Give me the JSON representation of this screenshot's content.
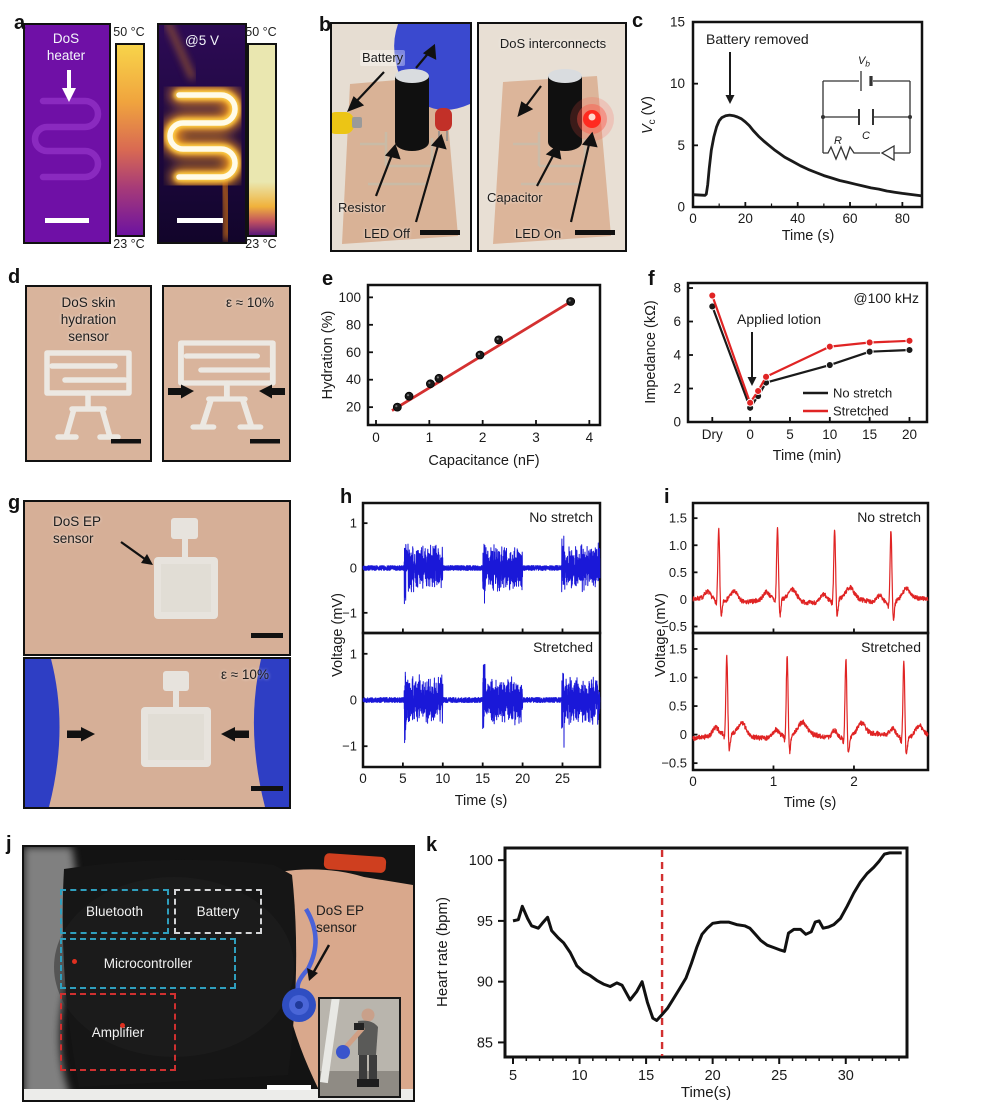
{
  "colors": {
    "emg_trace": "#1a18d8",
    "ecg_trace": "#e02424",
    "fit_line": "#d43030",
    "event_dashed": "#d23030",
    "thermal_purple": "#6f10a6",
    "thermal_hot": "#f8d44a",
    "thermal_cold": "#6d13a0",
    "skin": "#d9b29a",
    "glove_blue": "#3a49cf",
    "led_red": "#ff2a20",
    "box_bluetooth": "#2f9fbe",
    "box_battery": "#d4d5d7",
    "box_amplifier": "#d03030"
  },
  "panels": {
    "a": {
      "label": "a",
      "heater_label": "DoS heater",
      "voltage_annotation": "@5 V",
      "colorbar_max": "50 °C",
      "colorbar_min": "23 °C"
    },
    "b": {
      "label": "b",
      "left": {
        "battery": "Battery",
        "resistor": "Resistor",
        "led": "LED Off"
      },
      "right": {
        "interconnects": "DoS interconnects",
        "capacitor": "Capacitor",
        "led": "LED On"
      }
    },
    "c": {
      "label": "c"
    },
    "d": {
      "label": "d",
      "sensor_label": "DoS skin hydration sensor",
      "strain_annotation": "ε ≈ 10%"
    },
    "e": {
      "label": "e"
    },
    "f": {
      "label": "f"
    },
    "g": {
      "label": "g",
      "sensor_label": "DoS EP sensor",
      "strain_annotation": "ε ≈ 10%"
    },
    "h": {
      "label": "h"
    },
    "i": {
      "label": "i"
    },
    "j": {
      "label": "j",
      "boxes": [
        {
          "label": "Bluetooth"
        },
        {
          "label": "Battery"
        },
        {
          "label": "Microcontroller"
        },
        {
          "label": "Amplifier"
        }
      ],
      "sensor_label": "DoS EP sensor"
    },
    "k": {
      "label": "k"
    }
  },
  "chart_data": [
    {
      "id": "c",
      "type": "line",
      "xlabel": "Time (s)",
      "ylabel_pre": "V",
      "ylabel_sub": "c",
      "ylabel_post": " (V)",
      "xlim": [
        0,
        87.5
      ],
      "ylim": [
        0,
        15
      ],
      "xticks": [
        0,
        20,
        40,
        60,
        80
      ],
      "minor_x_step": 10,
      "yticks": [
        0,
        5,
        10,
        15
      ],
      "annotation": "Battery removed",
      "inset_labels": {
        "battery_pre": "V",
        "battery_sub": "b",
        "capacitor": "C",
        "resistor": "R"
      },
      "series": [
        {
          "name": "Capacitor voltage",
          "color": "#1a1a1a",
          "points": [
            [
              0,
              1.0
            ],
            [
              4.6,
              0.95
            ],
            [
              5.1,
              1.05
            ],
            [
              5.6,
              1.8
            ],
            [
              6.2,
              3.1
            ],
            [
              7,
              4.6
            ],
            [
              8,
              5.7
            ],
            [
              9,
              6.5
            ],
            [
              10,
              7.0
            ],
            [
              11,
              7.25
            ],
            [
              12.5,
              7.4
            ],
            [
              14,
              7.45
            ],
            [
              15.5,
              7.4
            ],
            [
              17,
              7.3
            ],
            [
              18.5,
              7.15
            ],
            [
              20,
              6.9
            ],
            [
              21.5,
              6.6
            ],
            [
              23,
              6.2
            ],
            [
              25,
              5.75
            ],
            [
              27,
              5.35
            ],
            [
              29,
              5.0
            ],
            [
              31,
              4.65
            ],
            [
              33,
              4.35
            ],
            [
              35,
              4.05
            ],
            [
              38,
              3.7
            ],
            [
              41,
              3.35
            ],
            [
              44,
              3.05
            ],
            [
              47,
              2.8
            ],
            [
              50,
              2.55
            ],
            [
              53,
              2.35
            ],
            [
              56,
              2.15
            ],
            [
              59,
              2.0
            ],
            [
              62,
              1.85
            ],
            [
              65,
              1.7
            ],
            [
              68,
              1.55
            ],
            [
              71,
              1.45
            ],
            [
              74,
              1.3
            ],
            [
              77,
              1.2
            ],
            [
              80,
              1.1
            ],
            [
              83,
              1.02
            ],
            [
              87.5,
              0.9
            ]
          ]
        }
      ]
    },
    {
      "id": "e",
      "type": "scatter",
      "xlabel": "Capacitance (nF)",
      "ylabel": "Hydration (%)",
      "xlim": [
        -0.15,
        4.2
      ],
      "ylim": [
        7,
        109
      ],
      "xticks": [
        0,
        1,
        2,
        3,
        4
      ],
      "yticks": [
        20,
        40,
        60,
        80,
        100
      ],
      "marker_color": "#1a1a1a",
      "points": [
        [
          0.4,
          20
        ],
        [
          0.62,
          28
        ],
        [
          1.02,
          37
        ],
        [
          1.18,
          41
        ],
        [
          1.95,
          58
        ],
        [
          2.3,
          69
        ],
        [
          3.65,
          97
        ]
      ],
      "fit": {
        "color": "#d43030",
        "from": [
          0.3,
          17.5
        ],
        "to": [
          3.72,
          98.5
        ]
      }
    },
    {
      "id": "f",
      "type": "line-markers",
      "xlabel": "Time (min)",
      "ylabel": "Impedance (kΩ)",
      "xlim": [
        -7.8,
        22.2
      ],
      "ylim": [
        0,
        8.3
      ],
      "xticks": [
        {
          "v": -4.75,
          "label": "Dry"
        },
        {
          "v": 0,
          "label": "0"
        },
        {
          "v": 5,
          "label": "5"
        },
        {
          "v": 10,
          "label": "10"
        },
        {
          "v": 15,
          "label": "15"
        },
        {
          "v": 20,
          "label": "20"
        }
      ],
      "yticks": [
        0,
        2,
        4,
        6,
        8
      ],
      "freq_annotation": "@100 kHz",
      "event_annotation": "Applied lotion",
      "x": [
        -4.75,
        0,
        1,
        2,
        10,
        15,
        20
      ],
      "series": [
        {
          "name": "No stretch",
          "color": "#1a1a1a",
          "values": [
            6.9,
            0.85,
            1.55,
            2.35,
            3.4,
            4.2,
            4.3
          ]
        },
        {
          "name": "Stretched",
          "color": "#e02424",
          "values": [
            7.55,
            1.15,
            1.85,
            2.7,
            4.5,
            4.75,
            4.85
          ]
        }
      ],
      "legend": [
        {
          "name": "No stretch",
          "color": "#1a1a1a"
        },
        {
          "name": "Stretched",
          "color": "#e02424"
        }
      ]
    },
    {
      "id": "h",
      "type": "emg",
      "xlabel": "Time (s)",
      "ylabel": "Voltage (mV)",
      "color": "#1a18d8",
      "xlim": [
        0,
        29.7
      ],
      "ylim": [
        -1.45,
        1.45
      ],
      "xticks": [
        0,
        5,
        10,
        15,
        20,
        25
      ],
      "yticks": [
        {
          "v": -1,
          "label": "−1"
        },
        {
          "v": 0,
          "label": "0"
        },
        {
          "v": 1,
          "label": "1"
        }
      ],
      "bursts": [
        [
          5.15,
          10.0
        ],
        [
          15.0,
          20.0
        ],
        [
          24.9,
          29.7
        ]
      ],
      "burst_amp": 0.45,
      "noise_amp": 0.055,
      "panels": [
        {
          "label": "No stretch",
          "seed": 42
        },
        {
          "label": "Stretched",
          "seed": 1337
        }
      ]
    },
    {
      "id": "i",
      "type": "ecg",
      "xlabel": "Time (s)",
      "ylabel": "Voltage (mV)",
      "color": "#e02424",
      "xlim": [
        0,
        2.92
      ],
      "ylim": [
        -0.62,
        1.78
      ],
      "xticks": [
        0,
        1,
        2
      ],
      "yticks": [
        {
          "v": -0.5,
          "label": "−0.5"
        },
        {
          "v": 0,
          "label": "0"
        },
        {
          "v": 0.5,
          "label": "0.5"
        },
        {
          "v": 1.0,
          "label": "1.0"
        },
        {
          "v": 1.5,
          "label": "1.5"
        }
      ],
      "panels": [
        {
          "label": "No stretch",
          "seed": 7,
          "beats": [
            0.32,
            1.05,
            1.76,
            2.46
          ],
          "r_amp": 1.32
        },
        {
          "label": "Stretched",
          "seed": 99,
          "beats": [
            0.42,
            1.17,
            1.9,
            2.62
          ],
          "r_amp": 1.37
        }
      ]
    },
    {
      "id": "k",
      "type": "line",
      "xlabel": "Time(s)",
      "ylabel": "Heart rate (bpm)",
      "xlim": [
        4.4,
        34.6
      ],
      "ylim": [
        83.8,
        101
      ],
      "xticks": [
        5,
        10,
        15,
        20,
        25,
        30
      ],
      "minor_x_step": 1,
      "yticks": [
        85,
        90,
        95,
        100
      ],
      "event_line": {
        "x": 16.2,
        "color": "#d23030"
      },
      "series": [
        {
          "name": "Heart rate",
          "color": "#111111",
          "points": [
            [
              5,
              95
            ],
            [
              5.4,
              95.1
            ],
            [
              5.7,
              96.2
            ],
            [
              6.1,
              95.2
            ],
            [
              6.4,
              94.6
            ],
            [
              6.9,
              94.4
            ],
            [
              7.2,
              94.8
            ],
            [
              7.6,
              95.3
            ],
            [
              7.9,
              94.2
            ],
            [
              8.4,
              93.6
            ],
            [
              8.8,
              93.2
            ],
            [
              9.3,
              92.4
            ],
            [
              9.8,
              91.3
            ],
            [
              10.3,
              90.8
            ],
            [
              10.8,
              90.5
            ],
            [
              11.3,
              90.1
            ],
            [
              11.8,
              89.8
            ],
            [
              12.3,
              89.6
            ],
            [
              12.8,
              89.9
            ],
            [
              13.2,
              89.7
            ],
            [
              13.8,
              88.5
            ],
            [
              14.3,
              89.2
            ],
            [
              14.7,
              90.0
            ],
            [
              15.1,
              88.3
            ],
            [
              15.5,
              87.0
            ],
            [
              15.8,
              86.8
            ],
            [
              16.2,
              87.3
            ],
            [
              16.6,
              87.8
            ],
            [
              17.0,
              88.5
            ],
            [
              17.5,
              89.4
            ],
            [
              18.0,
              90.3
            ],
            [
              18.4,
              91.5
            ],
            [
              18.8,
              92.8
            ],
            [
              19.2,
              93.9
            ],
            [
              19.6,
              94.4
            ],
            [
              20.0,
              94.8
            ],
            [
              20.6,
              94.9
            ],
            [
              21.2,
              94.9
            ],
            [
              21.8,
              94.7
            ],
            [
              22.4,
              94.6
            ],
            [
              22.8,
              94.4
            ],
            [
              23.2,
              93.9
            ],
            [
              23.6,
              93.4
            ],
            [
              24.1,
              93.0
            ],
            [
              24.6,
              92.8
            ],
            [
              25.1,
              92.6
            ],
            [
              25.4,
              92.5
            ],
            [
              25.7,
              94.0
            ],
            [
              26.1,
              94.3
            ],
            [
              26.6,
              94.3
            ],
            [
              27.0,
              93.9
            ],
            [
              27.4,
              94.1
            ],
            [
              27.7,
              94.9
            ],
            [
              28.0,
              95.0
            ],
            [
              28.3,
              94.4
            ],
            [
              28.7,
              94.5
            ],
            [
              29.1,
              94.7
            ],
            [
              29.6,
              95.2
            ],
            [
              30.1,
              96.2
            ],
            [
              30.6,
              97.3
            ],
            [
              31.1,
              98.2
            ],
            [
              31.6,
              98.9
            ],
            [
              32.1,
              99.4
            ],
            [
              32.5,
              99.9
            ],
            [
              32.9,
              100.5
            ],
            [
              33.3,
              100.6
            ],
            [
              34.2,
              100.6
            ]
          ]
        }
      ]
    }
  ]
}
